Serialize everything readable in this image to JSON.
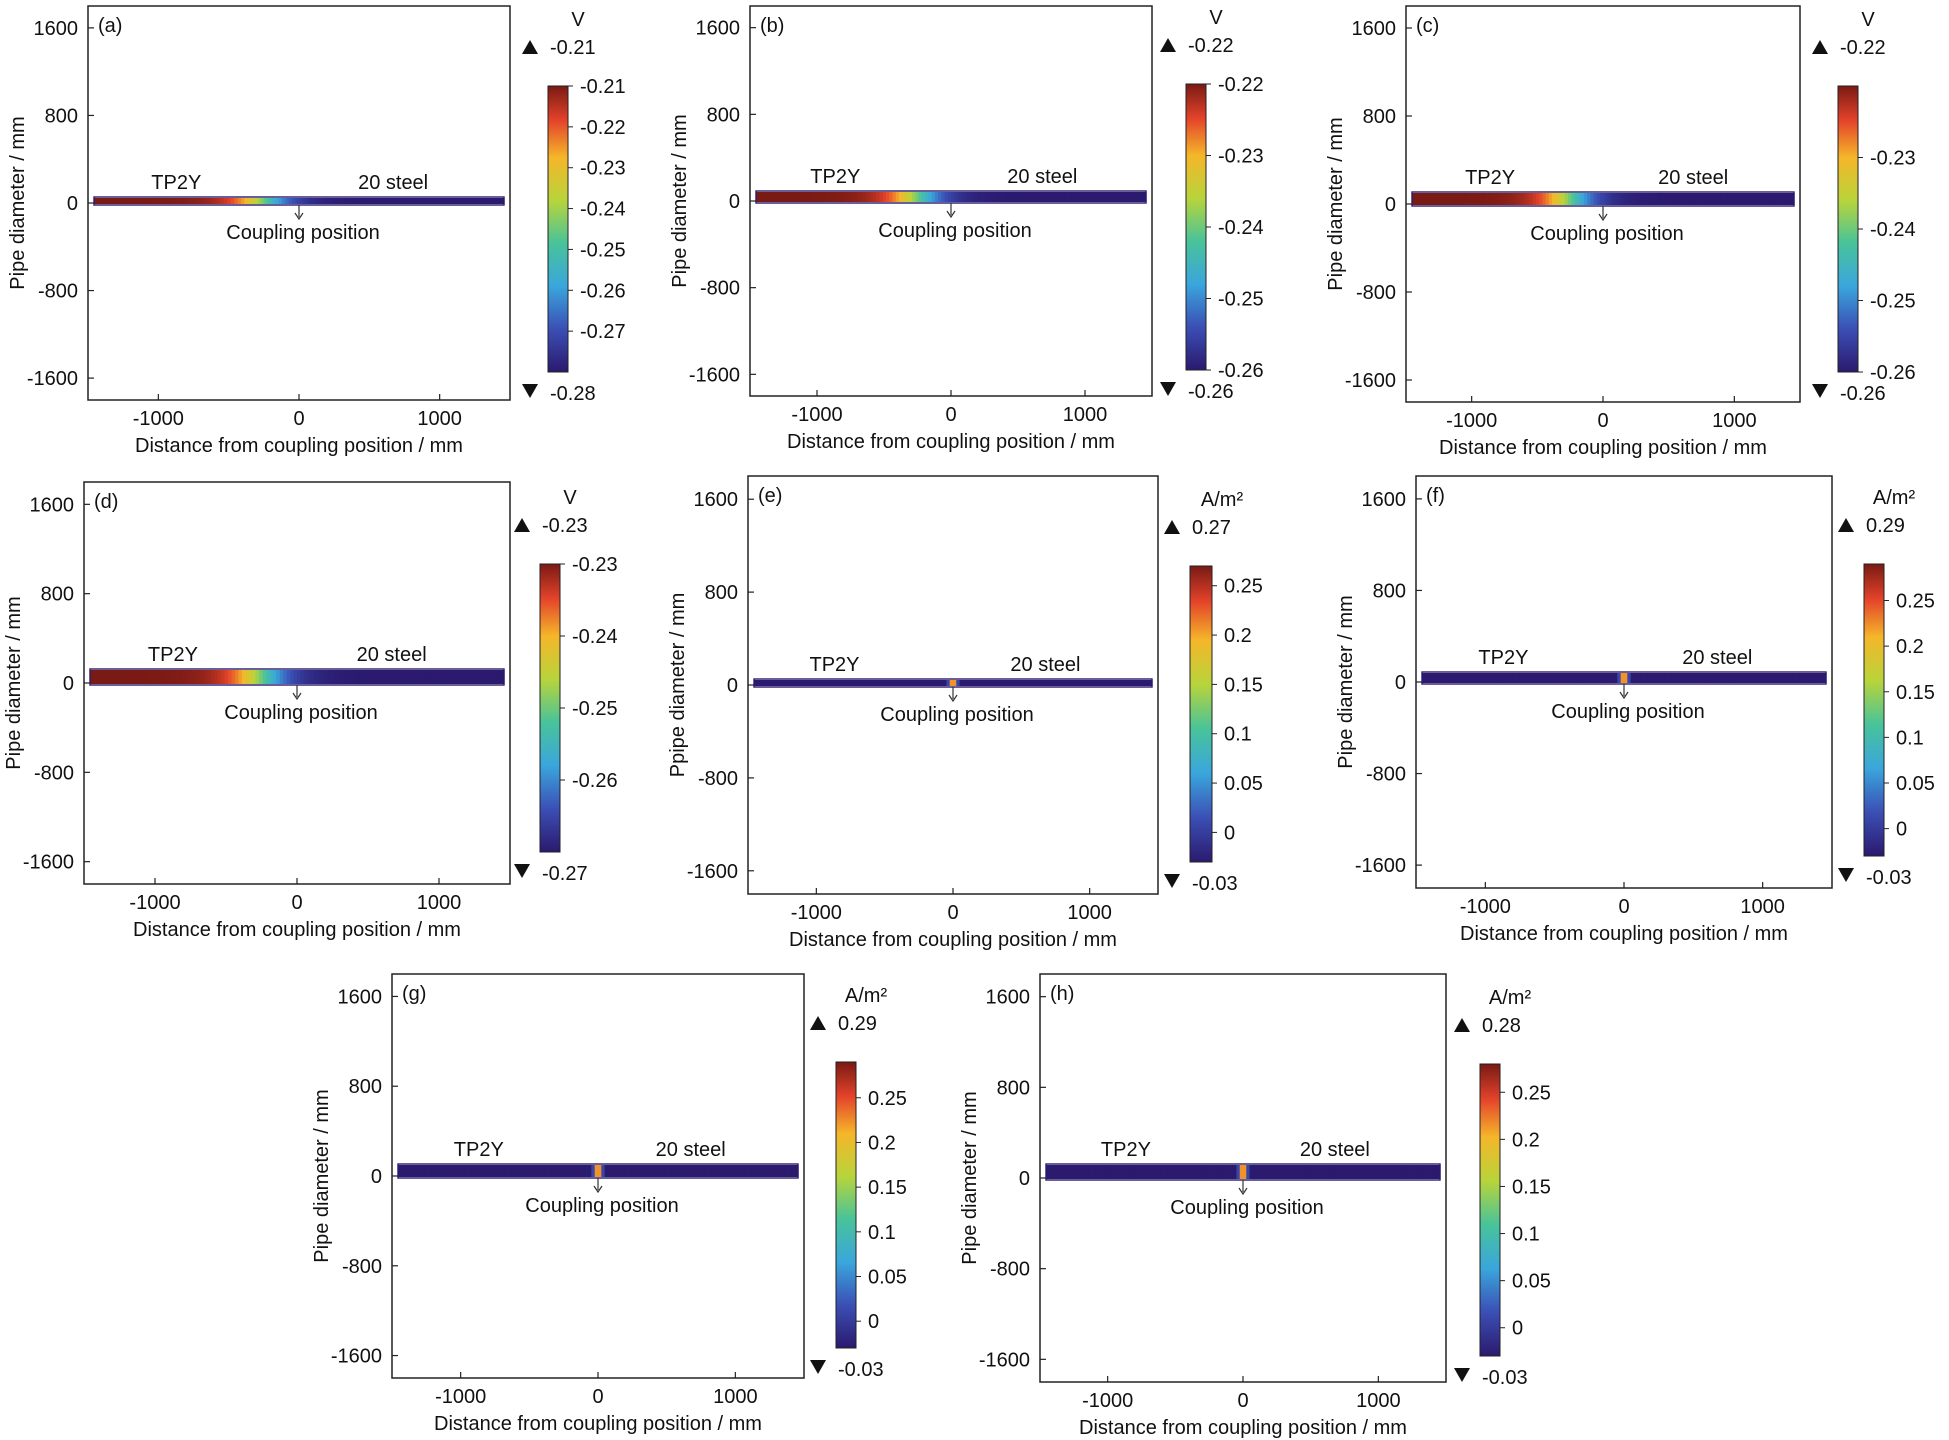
{
  "chart_data": [
    {
      "type": "heatmap",
      "panel_label": "(a)",
      "xlabel": "Distance from coupling position / mm",
      "ylabel": "Pipe diameter / mm",
      "xlim": [
        -1500,
        1500
      ],
      "ylim": [
        -1800,
        1800
      ],
      "xticks": [
        "-1000",
        "0",
        "1000"
      ],
      "yticks": [
        "1600",
        "800",
        "0",
        "-800",
        "-1600"
      ],
      "material_left": "TP2Y",
      "material_right": "20 steel",
      "annotation": "Coupling position",
      "colorbar": {
        "unit": "V",
        "max": "-0.21",
        "min": "-0.28",
        "ticks": [
          "-0.21",
          "-0.22",
          "-0.23",
          "-0.24",
          "-0.25",
          "-0.26",
          "-0.27"
        ]
      },
      "field": {
        "left_value": -0.21,
        "right_value": -0.28
      }
    },
    {
      "type": "heatmap",
      "panel_label": "(b)",
      "xlabel": "Distance from coupling position / mm",
      "ylabel": "Pipe diameter / mm",
      "xlim": [
        -1500,
        1500
      ],
      "ylim": [
        -1800,
        1800
      ],
      "xticks": [
        "-1000",
        "0",
        "1000"
      ],
      "yticks": [
        "1600",
        "800",
        "0",
        "-800",
        "-1600"
      ],
      "material_left": "TP2Y",
      "material_right": "20 steel",
      "annotation": "Coupling position",
      "colorbar": {
        "unit": "V",
        "max": "-0.22",
        "min": "-0.26",
        "ticks": [
          "-0.22",
          "-0.23",
          "-0.24",
          "-0.25",
          "-0.26"
        ]
      },
      "field": {
        "left_value": -0.22,
        "right_value": -0.26
      }
    },
    {
      "type": "heatmap",
      "panel_label": "(c)",
      "xlabel": "Distance from coupling position / mm",
      "ylabel": "Pipe diameter / mm",
      "xlim": [
        -1500,
        1500
      ],
      "ylim": [
        -1800,
        1800
      ],
      "xticks": [
        "-1000",
        "0",
        "1000"
      ],
      "yticks": [
        "1600",
        "800",
        "0",
        "-800",
        "-1600"
      ],
      "material_left": "TP2Y",
      "material_right": "20 steel",
      "annotation": "Coupling position",
      "colorbar": {
        "unit": "V",
        "max": "-0.22",
        "min": "-0.26",
        "ticks": [
          "-0.23",
          "-0.24",
          "-0.25",
          "-0.26"
        ]
      },
      "field": {
        "left_value": -0.22,
        "right_value": -0.26
      }
    },
    {
      "type": "heatmap",
      "panel_label": "(d)",
      "xlabel": "Distance from coupling position / mm",
      "ylabel": "Pipe diameter / mm",
      "xlim": [
        -1500,
        1500
      ],
      "ylim": [
        -1800,
        1800
      ],
      "xticks": [
        "-1000",
        "0",
        "1000"
      ],
      "yticks": [
        "1600",
        "800",
        "0",
        "-800",
        "-1600"
      ],
      "material_left": "TP2Y",
      "material_right": "20 steel",
      "annotation": "Coupling position",
      "colorbar": {
        "unit": "V",
        "max": "-0.23",
        "min": "-0.27",
        "ticks": [
          "-0.23",
          "-0.24",
          "-0.25",
          "-0.26"
        ]
      },
      "field": {
        "left_value": -0.23,
        "right_value": -0.27
      }
    },
    {
      "type": "heatmap",
      "panel_label": "(e)",
      "xlabel": "Distance from coupling position / mm",
      "ylabel": "Ppipe diameter / mm",
      "xlim": [
        -1500,
        1500
      ],
      "ylim": [
        -1800,
        1800
      ],
      "xticks": [
        "-1000",
        "0",
        "1000"
      ],
      "yticks": [
        "1600",
        "800",
        "0",
        "-800",
        "-1600"
      ],
      "material_left": "TP2Y",
      "material_right": "20 steel",
      "annotation": "Coupling position",
      "colorbar": {
        "unit": "A/m²",
        "max": "0.27",
        "min": "-0.03",
        "ticks": [
          "0.25",
          "0.2",
          "0.15",
          "0.1",
          "0.05",
          "0"
        ]
      },
      "field": {
        "background_value": -0.03,
        "peak_value": 0.27,
        "peak_at_x": 0
      }
    },
    {
      "type": "heatmap",
      "panel_label": "(f)",
      "xlabel": "Distance from coupling position / mm",
      "ylabel": "Pipe diameter / mm",
      "xlim": [
        -1500,
        1500
      ],
      "ylim": [
        -1800,
        1800
      ],
      "xticks": [
        "-1000",
        "0",
        "1000"
      ],
      "yticks": [
        "1600",
        "800",
        "0",
        "-800",
        "-1600"
      ],
      "material_left": "TP2Y",
      "material_right": "20 steel",
      "annotation": "Coupling position",
      "colorbar": {
        "unit": "A/m²",
        "max": "0.29",
        "min": "-0.03",
        "ticks": [
          "0.25",
          "0.2",
          "0.15",
          "0.1",
          "0.05",
          "0"
        ]
      },
      "field": {
        "background_value": -0.03,
        "peak_value": 0.29,
        "peak_at_x": 0
      }
    },
    {
      "type": "heatmap",
      "panel_label": "(g)",
      "xlabel": "Distance from coupling position / mm",
      "ylabel": "Pipe diameter / mm",
      "xlim": [
        -1500,
        1500
      ],
      "ylim": [
        -1800,
        1800
      ],
      "xticks": [
        "-1000",
        "0",
        "1000"
      ],
      "yticks": [
        "1600",
        "800",
        "0",
        "-800",
        "-1600"
      ],
      "material_left": "TP2Y",
      "material_right": "20 steel",
      "annotation": "Coupling position",
      "colorbar": {
        "unit": "A/m²",
        "max": "0.29",
        "min": "-0.03",
        "ticks": [
          "0.25",
          "0.2",
          "0.15",
          "0.1",
          "0.05",
          "0"
        ]
      },
      "field": {
        "background_value": -0.03,
        "peak_value": 0.29,
        "peak_at_x": 0
      }
    },
    {
      "type": "heatmap",
      "panel_label": "(h)",
      "xlabel": "Distance from coupling position / mm",
      "ylabel": "Pipe diameter / mm",
      "xlim": [
        -1500,
        1500
      ],
      "ylim": [
        -1800,
        1800
      ],
      "xticks": [
        "-1000",
        "0",
        "1000"
      ],
      "yticks": [
        "1600",
        "800",
        "0",
        "-800",
        "-1600"
      ],
      "material_left": "TP2Y",
      "material_right": "20 steel",
      "annotation": "Coupling position",
      "colorbar": {
        "unit": "A/m²",
        "max": "0.28",
        "min": "-0.03",
        "ticks": [
          "0.25",
          "0.2",
          "0.15",
          "0.1",
          "0.05",
          "0"
        ]
      },
      "field": {
        "background_value": -0.03,
        "peak_value": 0.28,
        "peak_at_x": 0
      }
    }
  ]
}
